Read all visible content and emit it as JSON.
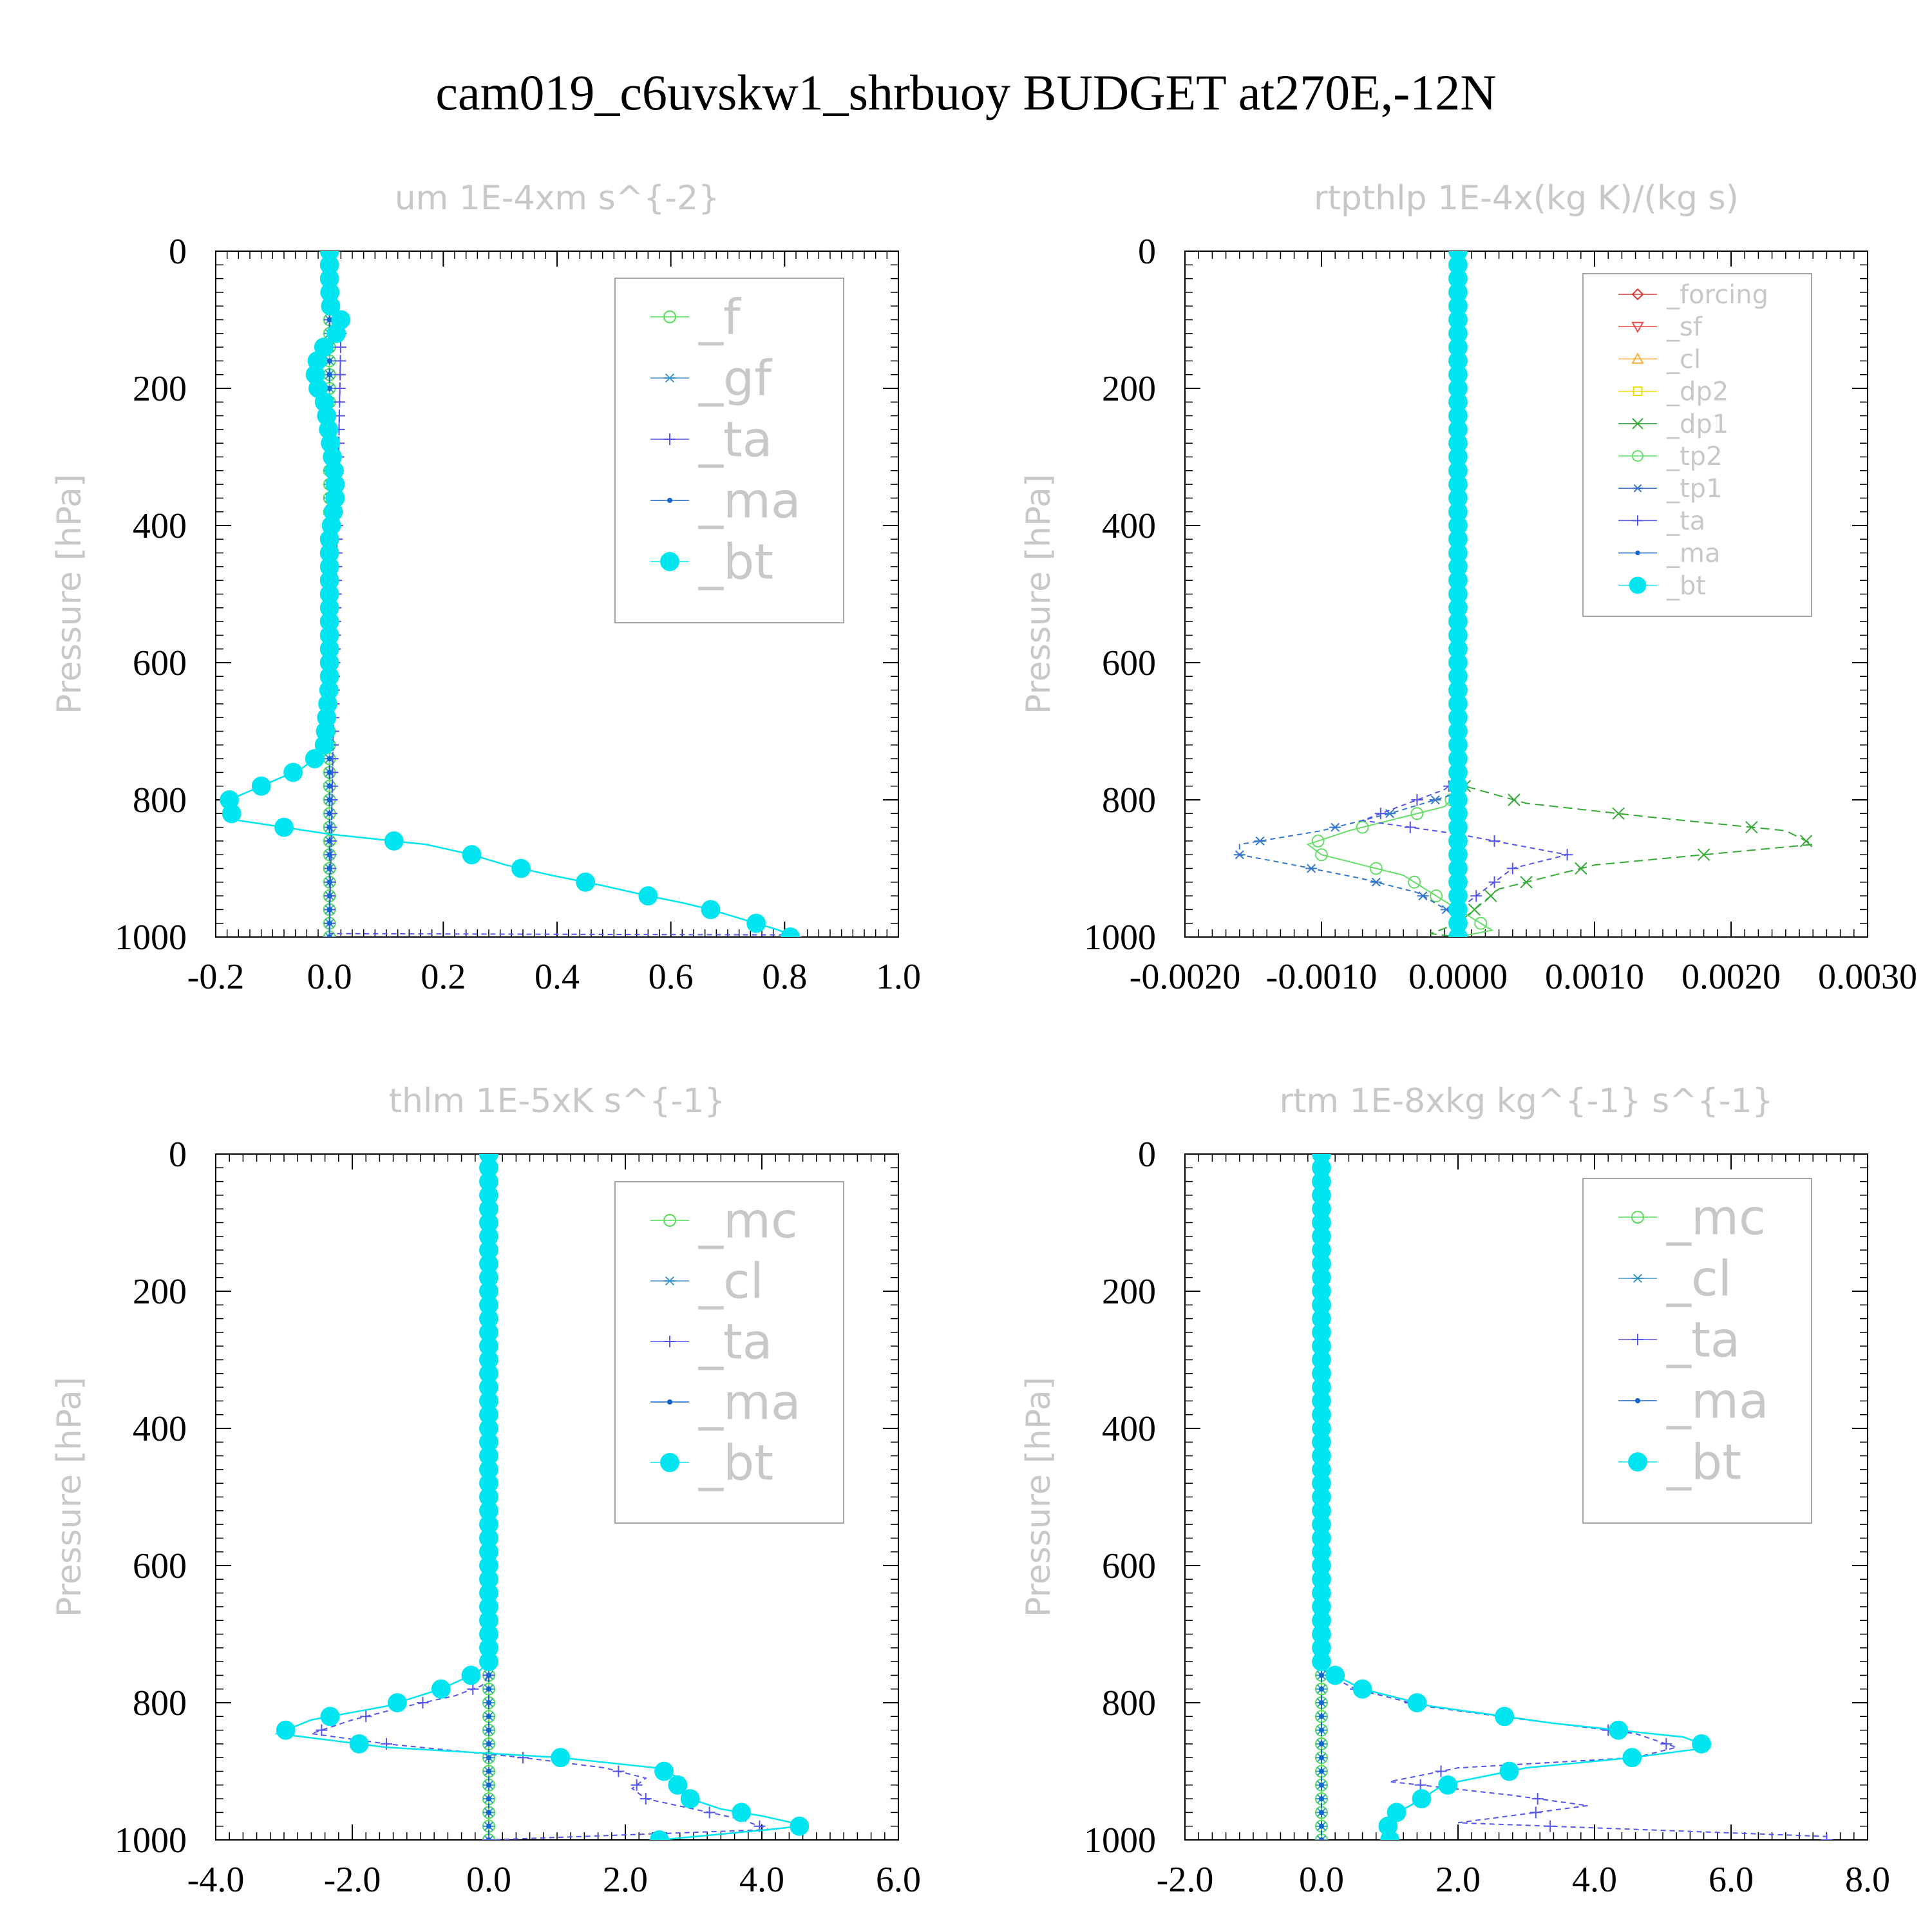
{
  "figure": {
    "title": "cam019_c6uvskw1_shrbuoy  BUDGET at270E,-12N"
  },
  "chart_data": [
    {
      "type": "line",
      "title": "um  1E-4xm s^{-2}",
      "ylabel": "Pressure [hPa]",
      "xlim": [
        -0.2,
        1.0
      ],
      "ylim": [
        1000,
        0
      ],
      "xticks": [
        "-0.2",
        "0.0",
        "0.2",
        "0.4",
        "0.6",
        "0.8",
        "1.0"
      ],
      "yticks": [
        "0",
        "200",
        "400",
        "600",
        "800",
        "1000"
      ],
      "grid": false,
      "legend": "top-right",
      "series": [
        {
          "name": "_f",
          "color": "#55dd55",
          "marker": "circle",
          "x": [
            0,
            0
          ],
          "y": [
            0,
            1000
          ]
        },
        {
          "name": "_gf",
          "color": "#3399cc",
          "marker": "star",
          "x": [
            0,
            0
          ],
          "y": [
            0,
            1000
          ]
        },
        {
          "name": "_ta",
          "color": "#5555ee",
          "marker": "plus",
          "x": [
            0,
            0,
            0,
            0.02,
            0.0,
            0.0,
            0.82
          ],
          "y": [
            0,
            90,
            100,
            120,
            990,
            995,
            997
          ]
        },
        {
          "name": "_ma",
          "color": "#1166cc",
          "marker": "dot",
          "x": [
            0,
            0,
            0
          ],
          "y": [
            0,
            500,
            1000
          ]
        },
        {
          "name": "_bt",
          "color": "#00e5f0",
          "marker": "bigdot",
          "x": [
            0,
            0,
            0.002,
            0.01,
            0.02,
            0.01,
            -0.01,
            -0.02,
            -0.025,
            -0.025,
            -0.02,
            -0.01,
            -0.005,
            0.0,
            0.005,
            0.01,
            0.01,
            0.005,
            0.0,
            0.0,
            0.0,
            0.0,
            0.0,
            0.0,
            0.0,
            -0.01,
            -0.05,
            -0.12,
            -0.19,
            -0.16,
            0.0,
            0.17,
            0.25,
            0.31,
            0.39,
            0.48,
            0.56,
            0.62,
            0.67,
            0.71,
            0.75,
            0.79,
            0.81
          ],
          "y": [
            0,
            50,
            80,
            95,
            100,
            125,
            140,
            155,
            170,
            185,
            200,
            215,
            240,
            270,
            300,
            330,
            360,
            390,
            420,
            450,
            480,
            520,
            555,
            595,
            630,
            730,
            755,
            780,
            805,
            830,
            850,
            865,
            880,
            895,
            910,
            925,
            940,
            950,
            960,
            970,
            980,
            990,
            997
          ]
        }
      ]
    },
    {
      "type": "line",
      "title": "rtpthlp  1E-4x(kg K)/(kg s)",
      "ylabel": "Pressure [hPa]",
      "xlim": [
        -0.002,
        0.003
      ],
      "ylim": [
        1000,
        0
      ],
      "xticks": [
        "-0.0020",
        "-0.0010",
        "0.0000",
        "0.0010",
        "0.0020",
        "0.0030"
      ],
      "yticks": [
        "0",
        "200",
        "400",
        "600",
        "800",
        "1000"
      ],
      "grid": false,
      "legend": "top-right",
      "series": [
        {
          "name": "_forcing",
          "color": "#dd3333",
          "marker": "diamond",
          "x": [
            0,
            0
          ],
          "y": [
            0,
            1000
          ]
        },
        {
          "name": "_sf",
          "color": "#ee4444",
          "marker": "tridown",
          "x": [
            0,
            0
          ],
          "y": [
            0,
            1000
          ]
        },
        {
          "name": "_cl",
          "color": "#ffaa33",
          "marker": "triup",
          "x": [
            0,
            0
          ],
          "y": [
            0,
            1000
          ]
        },
        {
          "name": "_dp2",
          "color": "#eedd00",
          "marker": "square",
          "x": [
            0,
            0,
            2e-05,
            2e-05,
            0
          ],
          "y": [
            0,
            870,
            880,
            990,
            1000
          ]
        },
        {
          "name": "_dp1",
          "color": "#33aa33",
          "marker": "cross",
          "x": [
            0,
            0,
            5e-05,
            0.0005,
            0.0014,
            0.0024,
            0.0026,
            0.0018,
            0.001,
            0.0003,
            0.0,
            -0.0002,
            0.0
          ],
          "y": [
            0,
            760,
            780,
            805,
            825,
            845,
            865,
            880,
            895,
            930,
            980,
            995,
            1000
          ]
        },
        {
          "name": "_tp2",
          "color": "#66dd66",
          "marker": "circle",
          "x": [
            0,
            0,
            -0.0001,
            -0.0004,
            -0.0008,
            -0.0011,
            -0.001,
            -0.0007,
            -0.0004,
            -0.0002,
            0.0,
            0.00025,
            0.0
          ],
          "y": [
            0,
            790,
            810,
            825,
            845,
            865,
            880,
            895,
            910,
            935,
            960,
            990,
            1000
          ]
        },
        {
          "name": "_tp1",
          "color": "#3377cc",
          "marker": "star",
          "x": [
            0,
            0,
            -0.0005,
            -0.001,
            -0.0016,
            -0.0016,
            -0.0012,
            -0.0007,
            -0.0003,
            0.0,
            0.0
          ],
          "y": [
            0,
            790,
            820,
            845,
            865,
            880,
            895,
            915,
            935,
            970,
            1000
          ]
        },
        {
          "name": "_ta",
          "color": "#5555ee",
          "marker": "plus",
          "x": [
            0,
            0,
            -0.0001,
            -0.0003,
            -0.0005,
            -0.0007,
            0.0,
            0.0008,
            0.0004,
            0.0,
            0.0
          ],
          "y": [
            0,
            770,
            785,
            800,
            815,
            830,
            850,
            880,
            900,
            960,
            1000
          ]
        },
        {
          "name": "_ma",
          "color": "#1166cc",
          "marker": "dot",
          "x": [
            0,
            0
          ],
          "y": [
            0,
            1000
          ]
        },
        {
          "name": "_bt",
          "color": "#00e5f0",
          "marker": "bigdot",
          "x": [
            0,
            0
          ],
          "y": [
            0,
            1000
          ]
        }
      ]
    },
    {
      "type": "line",
      "title": "thlm  1E-5xK s^{-1}",
      "ylabel": "Pressure [hPa]",
      "xlim": [
        -4.0,
        6.0
      ],
      "ylim": [
        1000,
        0
      ],
      "xticks": [
        "-4.0",
        "-2.0",
        "0.0",
        "2.0",
        "4.0",
        "6.0"
      ],
      "yticks": [
        "0",
        "200",
        "400",
        "600",
        "800",
        "1000"
      ],
      "grid": false,
      "legend": "top-right",
      "series": [
        {
          "name": "_mc",
          "color": "#55dd55",
          "marker": "circle",
          "x": [
            0,
            0
          ],
          "y": [
            0,
            1000
          ]
        },
        {
          "name": "_cl",
          "color": "#3399cc",
          "marker": "star",
          "x": [
            0,
            0
          ],
          "y": [
            0,
            1000
          ]
        },
        {
          "name": "_ta",
          "color": "#5555ee",
          "marker": "plus",
          "x": [
            0,
            0,
            -0.1,
            -0.5,
            -1.2,
            -2.0,
            -2.6,
            -1.5,
            0.5,
            1.7,
            2.3,
            2.1,
            2.3,
            3.0,
            3.7,
            4.1,
            0.0
          ],
          "y": [
            0,
            760,
            775,
            790,
            805,
            825,
            845,
            860,
            880,
            895,
            910,
            925,
            940,
            955,
            970,
            985,
            1000
          ]
        },
        {
          "name": "_ma",
          "color": "#1166cc",
          "marker": "dot",
          "x": [
            0,
            0
          ],
          "y": [
            0,
            1000
          ]
        },
        {
          "name": "_bt",
          "color": "#00e5f0",
          "marker": "bigdot",
          "x": [
            0,
            0,
            -0.15,
            -0.7,
            -1.5,
            -2.6,
            -3.1,
            -1.5,
            1.05,
            2.45,
            2.8,
            2.75,
            2.95,
            3.4,
            4.0,
            4.45,
            4.55,
            4.1,
            2.5
          ],
          "y": [
            0,
            740,
            755,
            780,
            805,
            825,
            845,
            865,
            880,
            895,
            910,
            925,
            940,
            955,
            965,
            975,
            980,
            985,
            1000
          ]
        }
      ]
    },
    {
      "type": "line",
      "title": "rtm  1E-8xkg kg^{-1} s^{-1}",
      "ylabel": "Pressure [hPa]",
      "xlim": [
        -2.0,
        8.0
      ],
      "ylim": [
        1000,
        0
      ],
      "xticks": [
        "-2.0",
        "0.0",
        "2.0",
        "4.0",
        "6.0",
        "8.0"
      ],
      "yticks": [
        "0",
        "200",
        "400",
        "600",
        "800",
        "1000"
      ],
      "grid": false,
      "legend": "top-right",
      "series": [
        {
          "name": "_mc",
          "color": "#55dd55",
          "marker": "circle",
          "x": [
            0,
            0
          ],
          "y": [
            0,
            1000
          ]
        },
        {
          "name": "_cl",
          "color": "#3399cc",
          "marker": "star",
          "x": [
            0,
            0
          ],
          "y": [
            0,
            1000
          ]
        },
        {
          "name": "_ta",
          "color": "#5555ee",
          "marker": "plus",
          "x": [
            0,
            0,
            0.2,
            0.5,
            1.5,
            3.0,
            4.6,
            5.2,
            4.6,
            2.0,
            1.0,
            2.8,
            3.9,
            2.0,
            7.4
          ],
          "y": [
            0,
            750,
            765,
            780,
            805,
            825,
            845,
            865,
            880,
            895,
            915,
            935,
            950,
            975,
            995
          ]
        },
        {
          "name": "_ma",
          "color": "#1166cc",
          "marker": "dot",
          "x": [
            0,
            0
          ],
          "y": [
            0,
            1000
          ]
        },
        {
          "name": "_bt",
          "color": "#00e5f0",
          "marker": "bigdot",
          "x": [
            0,
            0,
            0.1,
            0.6,
            1.6,
            3.4,
            5.3,
            5.7,
            4.55,
            3.0,
            2.0,
            1.7,
            1.55,
            1.3,
            1.1,
            1.0,
            0.95,
            1.0
          ],
          "y": [
            0,
            745,
            755,
            780,
            805,
            830,
            850,
            865,
            880,
            895,
            915,
            925,
            935,
            950,
            960,
            975,
            985,
            995
          ]
        }
      ]
    }
  ]
}
